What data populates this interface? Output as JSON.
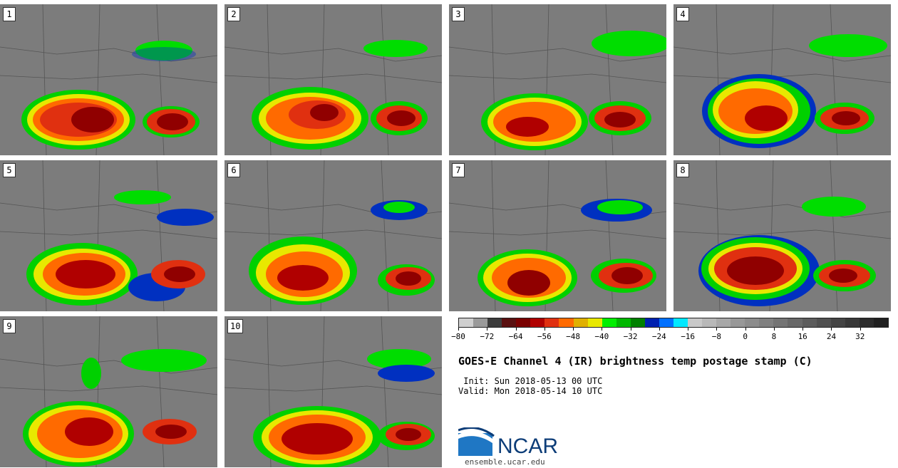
{
  "panels": [
    {
      "label": "1"
    },
    {
      "label": "2"
    },
    {
      "label": "3"
    },
    {
      "label": "4"
    },
    {
      "label": "5"
    },
    {
      "label": "6"
    },
    {
      "label": "7"
    },
    {
      "label": "8"
    },
    {
      "label": "9"
    },
    {
      "label": "10"
    }
  ],
  "colorbar": {
    "colors": [
      "#cfcfcf",
      "#9a9a9a",
      "#3c3c3c",
      "#5a1010",
      "#7a0000",
      "#b00000",
      "#e03010",
      "#ff6a00",
      "#e0b000",
      "#e8e800",
      "#00ee00",
      "#00b800",
      "#008000",
      "#0020b0",
      "#0070ff",
      "#00e8ff",
      "#c8c8c8",
      "#b8b8b8",
      "#a8a8a8",
      "#989898",
      "#8c8c8c",
      "#808080",
      "#747474",
      "#686868",
      "#5c5c5c",
      "#505050",
      "#444444",
      "#383838",
      "#2c2c2c",
      "#202020"
    ],
    "ticks": [
      "−80",
      "−72",
      "−64",
      "−56",
      "−48",
      "−40",
      "−32",
      "−24",
      "−16",
      "−8",
      "0",
      "8",
      "16",
      "24",
      "32"
    ]
  },
  "title": "GOES-E Channel 4 (IR) brightness temp postage stamp (C)",
  "init": " Init: Sun 2018-05-13 00 UTC",
  "valid": "Valid: Mon 2018-05-14 10 UTC",
  "logo": {
    "name": "NCAR",
    "url": "ensemble.ucar.edu"
  }
}
